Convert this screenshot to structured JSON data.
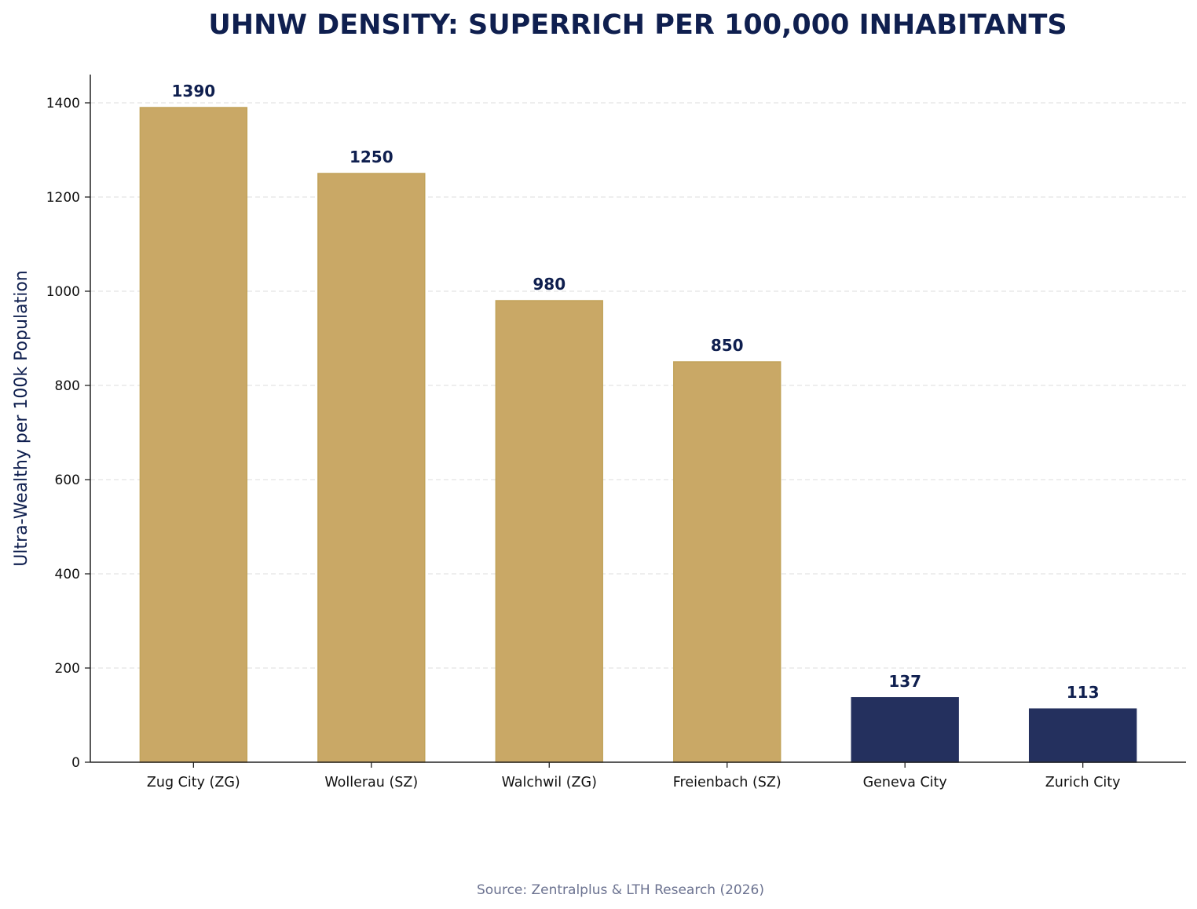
{
  "chart_data": {
    "type": "bar",
    "title": "UHNW DENSITY: SUPERRICH PER 100,000 INHABITANTS",
    "xlabel": "",
    "ylabel": "Ultra-Wealthy per 100k Population",
    "categories": [
      "Zug City (ZG)",
      "Wollerau (SZ)",
      "Walchwil (ZG)",
      "Freienbach (SZ)",
      "Geneva City",
      "Zurich City"
    ],
    "values": [
      1390,
      1250,
      980,
      850,
      137,
      113
    ],
    "data_labels": [
      "1390",
      "1250",
      "980",
      "850",
      "137",
      "113"
    ],
    "bar_colors": [
      "#C9A866",
      "#C9A866",
      "#C9A866",
      "#C9A866",
      "#24305E",
      "#24305E"
    ],
    "ylim": [
      0,
      1460
    ],
    "yticks": [
      0,
      200,
      400,
      600,
      800,
      1000,
      1200,
      1400
    ],
    "grid": "horizontal dashed",
    "source": "Source: Zentralplus & LTH Research (2026)",
    "colors": {
      "title": "#0F1F4F",
      "label": "#0F1F4F",
      "source": "#6B7290",
      "grid": "#E3E3E3"
    }
  }
}
